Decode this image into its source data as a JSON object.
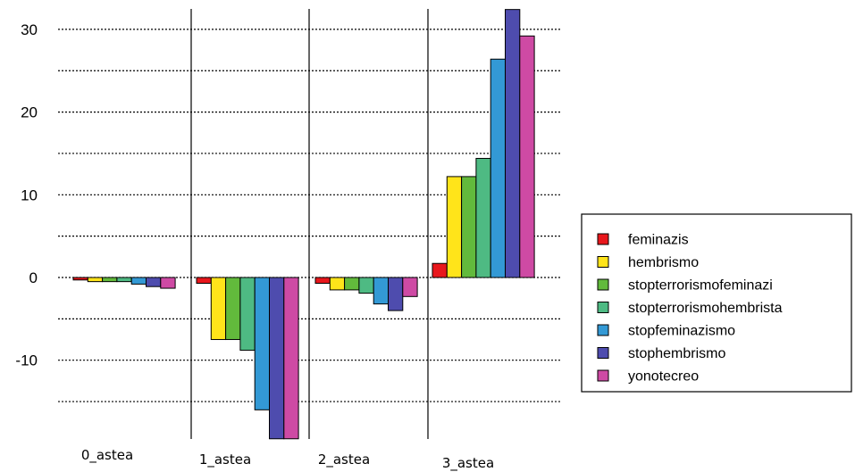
{
  "chart_data": {
    "type": "bar",
    "categories": [
      "0_astea",
      "1_astea",
      "2_astea",
      "3_astea"
    ],
    "series": [
      {
        "name": "feminazis",
        "color": "#E8171C",
        "values": [
          -0.3,
          -0.7,
          -0.7,
          1.7
        ]
      },
      {
        "name": "hembrismo",
        "color": "#FFE41A",
        "values": [
          -0.5,
          -7.5,
          -1.5,
          12.2
        ]
      },
      {
        "name": "stopterrorismofeminazi",
        "color": "#62BA3C",
        "values": [
          -0.5,
          -7.5,
          -1.5,
          12.2
        ]
      },
      {
        "name": "stopterrorismohembrista",
        "color": "#4EBA83",
        "values": [
          -0.5,
          -8.8,
          -1.9,
          14.4
        ]
      },
      {
        "name": "stopfeminazismo",
        "color": "#3399D5",
        "values": [
          -0.8,
          -16.0,
          -3.2,
          26.4
        ]
      },
      {
        "name": "stophembrismo",
        "color": "#4E4CAE",
        "values": [
          -1.1,
          -19.5,
          -4.0,
          32.4
        ]
      },
      {
        "name": "yonotecreo",
        "color": "#CE4AA4",
        "values": [
          -1.3,
          -19.5,
          -2.3,
          29.2
        ]
      }
    ],
    "y_ticks": [
      30,
      20,
      10,
      0,
      -10
    ],
    "y_tick_labels": [
      "30",
      "20",
      "10",
      "0",
      "-10"
    ],
    "ylim": [
      -19.5,
      32.4
    ],
    "grid": "horizontal dotted every 5 units",
    "legend_position": "right"
  }
}
